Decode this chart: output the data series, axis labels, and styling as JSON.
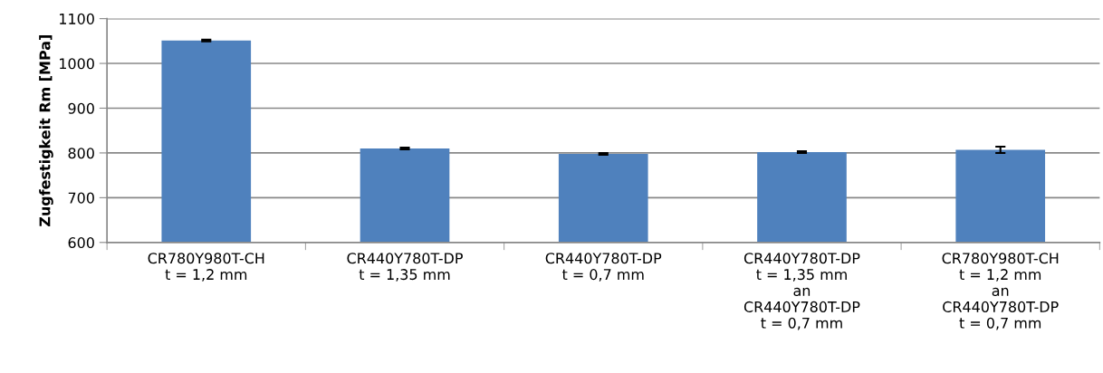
{
  "chart_data": {
    "type": "bar",
    "ylabel": "Zugfestigkeit Rm [MPa]",
    "categories": [
      "CR780Y980T-CH\nt = 1,2 mm",
      "CR440Y780T-DP\nt = 1,35 mm",
      "CR440Y780T-DP\nt = 0,7 mm",
      "CR440Y780T-DP\nt = 1,35 mm\nan\nCR440Y780T-DP\nt = 0,7 mm",
      "CR780Y980T-CH\nt = 1,2 mm\nan\nCR440Y780T-DP\nt = 0,7 mm"
    ],
    "values": [
      1051,
      810,
      798,
      802,
      807
    ],
    "errors": [
      2,
      2,
      2,
      2,
      7
    ],
    "color": "#4f81bd",
    "ylim": [
      600,
      1100
    ],
    "yticks": [
      600,
      700,
      800,
      900,
      1000,
      1100
    ],
    "grid": "y",
    "legend": false
  }
}
